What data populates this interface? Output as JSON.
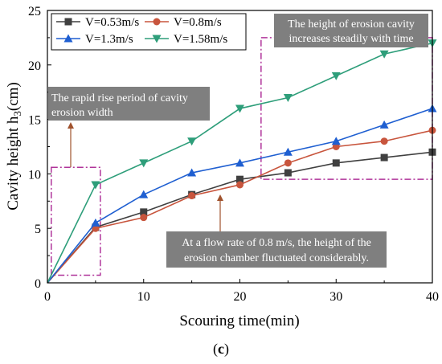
{
  "chart_data": {
    "type": "line",
    "xlabel": "Scouring time(min)",
    "ylabel_main": "Cavity height h",
    "ylabel_sub": "3",
    "ylabel_unit": "(cm)",
    "xlim": [
      0,
      40
    ],
    "ylim": [
      0,
      25
    ],
    "xticks": [
      0,
      10,
      20,
      30,
      40
    ],
    "yticks": [
      0,
      5,
      10,
      15,
      20,
      25
    ],
    "grid": false,
    "legend_position": "top-left",
    "x": [
      0,
      5,
      10,
      15,
      20,
      25,
      30,
      35,
      40
    ],
    "series": [
      {
        "name": "V=0.53m/s",
        "color": "#404040",
        "marker": "square",
        "values": [
          0,
          5.1,
          6.5,
          8.1,
          9.5,
          10.1,
          11.0,
          11.5,
          12.0
        ]
      },
      {
        "name": "V=0.8m/s",
        "color": "#c8553d",
        "marker": "circle",
        "values": [
          0,
          5.0,
          6.0,
          8.0,
          9.0,
          11.0,
          12.5,
          13.0,
          14.0
        ]
      },
      {
        "name": "V=1.3m/s",
        "color": "#1f5fd1",
        "marker": "triangle",
        "values": [
          0,
          5.5,
          8.1,
          10.1,
          11.0,
          12.0,
          13.0,
          14.5,
          16.0
        ]
      },
      {
        "name": "V=1.58m/s",
        "color": "#2e9e7a",
        "marker": "triangle-down",
        "values": [
          0,
          9.0,
          11.0,
          13.0,
          16.0,
          17.0,
          19.0,
          21.0,
          22.0
        ]
      }
    ],
    "annotations": [
      {
        "lines": [
          "The rapid rise period of cavity",
          "erosion width"
        ]
      },
      {
        "lines": [
          "The height of erosion cavity",
          "increases steadily with time"
        ]
      },
      {
        "lines": [
          "At a flow rate of 0.8 m/s, the height of the",
          "erosion chamber fluctuated considerably."
        ]
      }
    ],
    "caption_open": "(",
    "caption_letter": "c",
    "caption_close": ")"
  },
  "colors": {
    "highlight_box": "#b0349a",
    "annotation_fill": "#7f7f7f",
    "arrow": "#a0522d"
  }
}
